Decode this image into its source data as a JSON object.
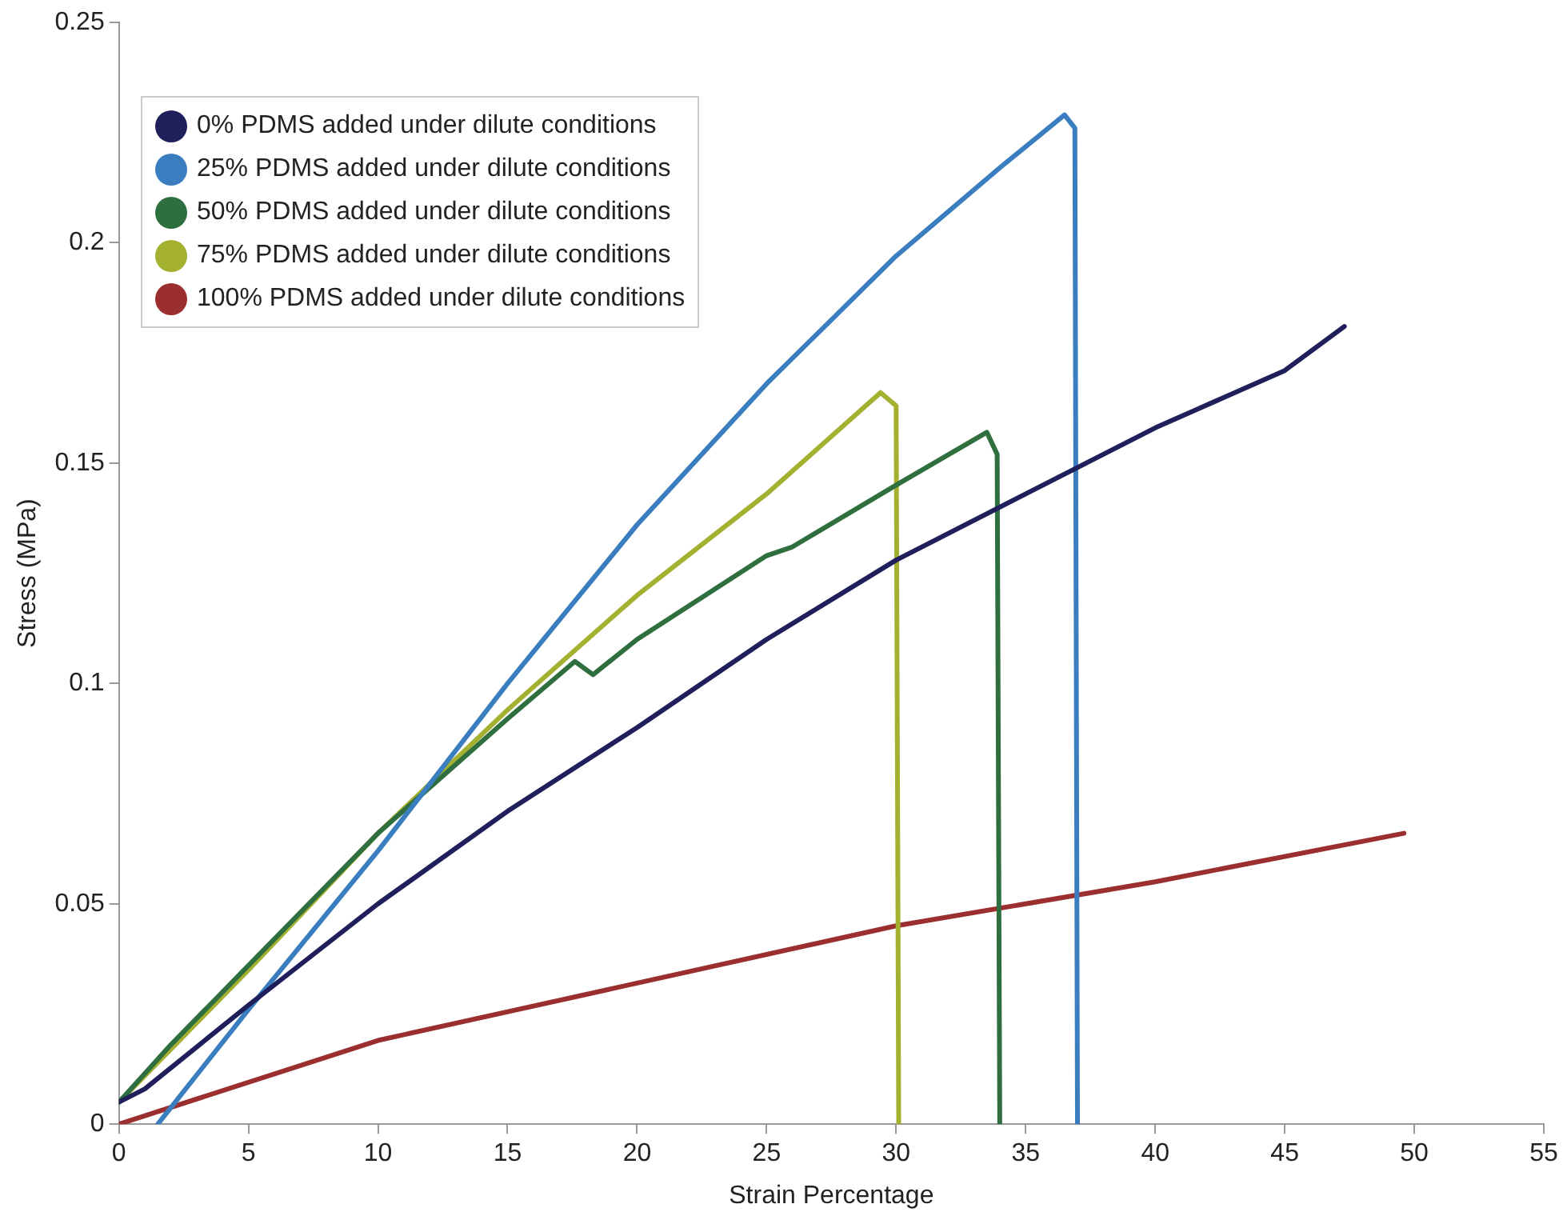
{
  "chart_data": {
    "type": "line",
    "xlabel": "Strain Percentage",
    "ylabel": "Stress (MPa)",
    "xlim": [
      0,
      55
    ],
    "xticks": [
      0,
      5,
      10,
      15,
      20,
      25,
      30,
      35,
      40,
      45,
      50,
      55
    ],
    "ylim": [
      0,
      0.25
    ],
    "yticks": [
      0,
      0.05,
      0.1,
      0.15,
      0.2,
      0.25
    ],
    "grid": false,
    "legend": "top left",
    "marker": "none",
    "line_style": "solid",
    "series": [
      {
        "name": "0% PDMS added under dilute conditions",
        "color": "#1f1f5c",
        "x": [
          0,
          1,
          5,
          10,
          15,
          20,
          25,
          30,
          35,
          40,
          45,
          47.3
        ],
        "values": [
          0.005,
          0.008,
          0.027,
          0.05,
          0.071,
          0.09,
          0.11,
          0.128,
          0.143,
          0.158,
          0.171,
          0.181
        ]
      },
      {
        "name": "25% PDMS added under dilute conditions",
        "color": "#3a7ebf",
        "x": [
          1.5,
          5,
          10,
          15,
          20,
          25,
          30,
          34,
          36.5,
          36.9,
          37
        ],
        "values": [
          0,
          0.026,
          0.062,
          0.1,
          0.136,
          0.168,
          0.197,
          0.217,
          0.229,
          0.226,
          0
        ]
      },
      {
        "name": "50% PDMS added under dilute conditions",
        "color": "#2f6e3e",
        "x": [
          0,
          2,
          5,
          10,
          15,
          17.6,
          18.3,
          20,
          25,
          26,
          30,
          33.5,
          33.9,
          34
        ],
        "values": [
          0.005,
          0.018,
          0.036,
          0.066,
          0.092,
          0.105,
          0.102,
          0.11,
          0.129,
          0.131,
          0.145,
          0.157,
          0.152,
          0
        ]
      },
      {
        "name": "75% PDMS added under dilute conditions",
        "color": "#a3b030",
        "x": [
          0,
          5,
          10,
          15,
          20,
          25,
          29.4,
          30,
          30.1
        ],
        "values": [
          0.005,
          0.035,
          0.066,
          0.094,
          0.12,
          0.143,
          0.166,
          0.163,
          0
        ]
      },
      {
        "name": "100% PDMS added under dilute conditions",
        "color": "#9b2e2e",
        "x": [
          0,
          10,
          20,
          30,
          40,
          49.6
        ],
        "values": [
          0,
          0.019,
          0.032,
          0.045,
          0.055,
          0.066
        ]
      }
    ]
  }
}
